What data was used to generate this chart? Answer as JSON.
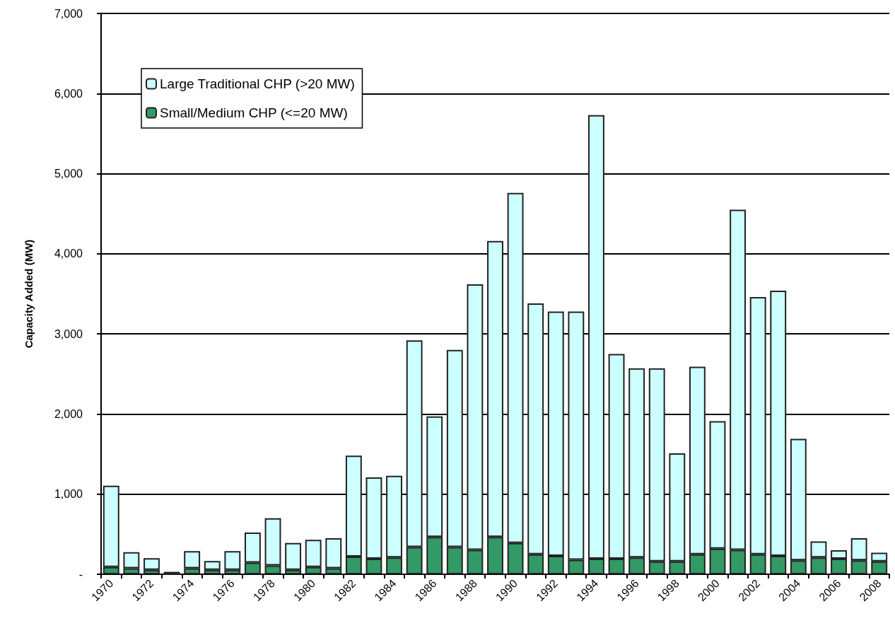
{
  "chart_data": {
    "type": "bar",
    "ylabel": "Capacity Added (MW)",
    "stacked": true,
    "grid": "y",
    "legend": "top left",
    "categories": [
      "1970",
      null,
      "1972",
      null,
      "1974",
      null,
      "1976",
      null,
      "1978",
      null,
      "1980",
      null,
      "1982",
      null,
      "1984",
      null,
      "1986",
      null,
      "1988",
      null,
      "1990",
      null,
      "1992",
      null,
      "1994",
      null,
      "1996",
      null,
      "1998",
      null,
      "2000",
      null,
      "2002",
      null,
      "2004",
      null,
      "2006",
      null,
      "2008"
    ],
    "series": [
      {
        "name": "Small/Medium CHP (<=20 MW)",
        "color": "#339966",
        "values": [
          90,
          75,
          55,
          0,
          75,
          55,
          55,
          145,
          110,
          55,
          90,
          75,
          220,
          195,
          210,
          340,
          465,
          340,
          305,
          465,
          390,
          250,
          230,
          180,
          195,
          195,
          210,
          160,
          160,
          250,
          320,
          305,
          250,
          230,
          175,
          210,
          195,
          175,
          160
        ]
      },
      {
        "name": "Large Traditional CHP (>20 MW)",
        "color": "#ccffff",
        "values": [
          1015,
          200,
          145,
          30,
          215,
          110,
          235,
          375,
          590,
          335,
          340,
          375,
          1260,
          1015,
          1020,
          2580,
          1505,
          2460,
          3315,
          3695,
          4370,
          3130,
          3050,
          3100,
          5535,
          2555,
          2360,
          2410,
          1350,
          2340,
          1590,
          4245,
          3210,
          3310,
          1515,
          200,
          105,
          275,
          110
        ]
      }
    ],
    "ylim": [
      0,
      7000
    ],
    "yticks": [
      {
        "value": 0,
        "label": "-"
      },
      {
        "value": 1000,
        "label": "1,000"
      },
      {
        "value": 2000,
        "label": "2,000"
      },
      {
        "value": 3000,
        "label": "3,000"
      },
      {
        "value": 4000,
        "label": "4,000"
      },
      {
        "value": 5000,
        "label": "5,000"
      },
      {
        "value": 6000,
        "label": "6,000"
      },
      {
        "value": 7000,
        "label": "7,000"
      }
    ]
  }
}
